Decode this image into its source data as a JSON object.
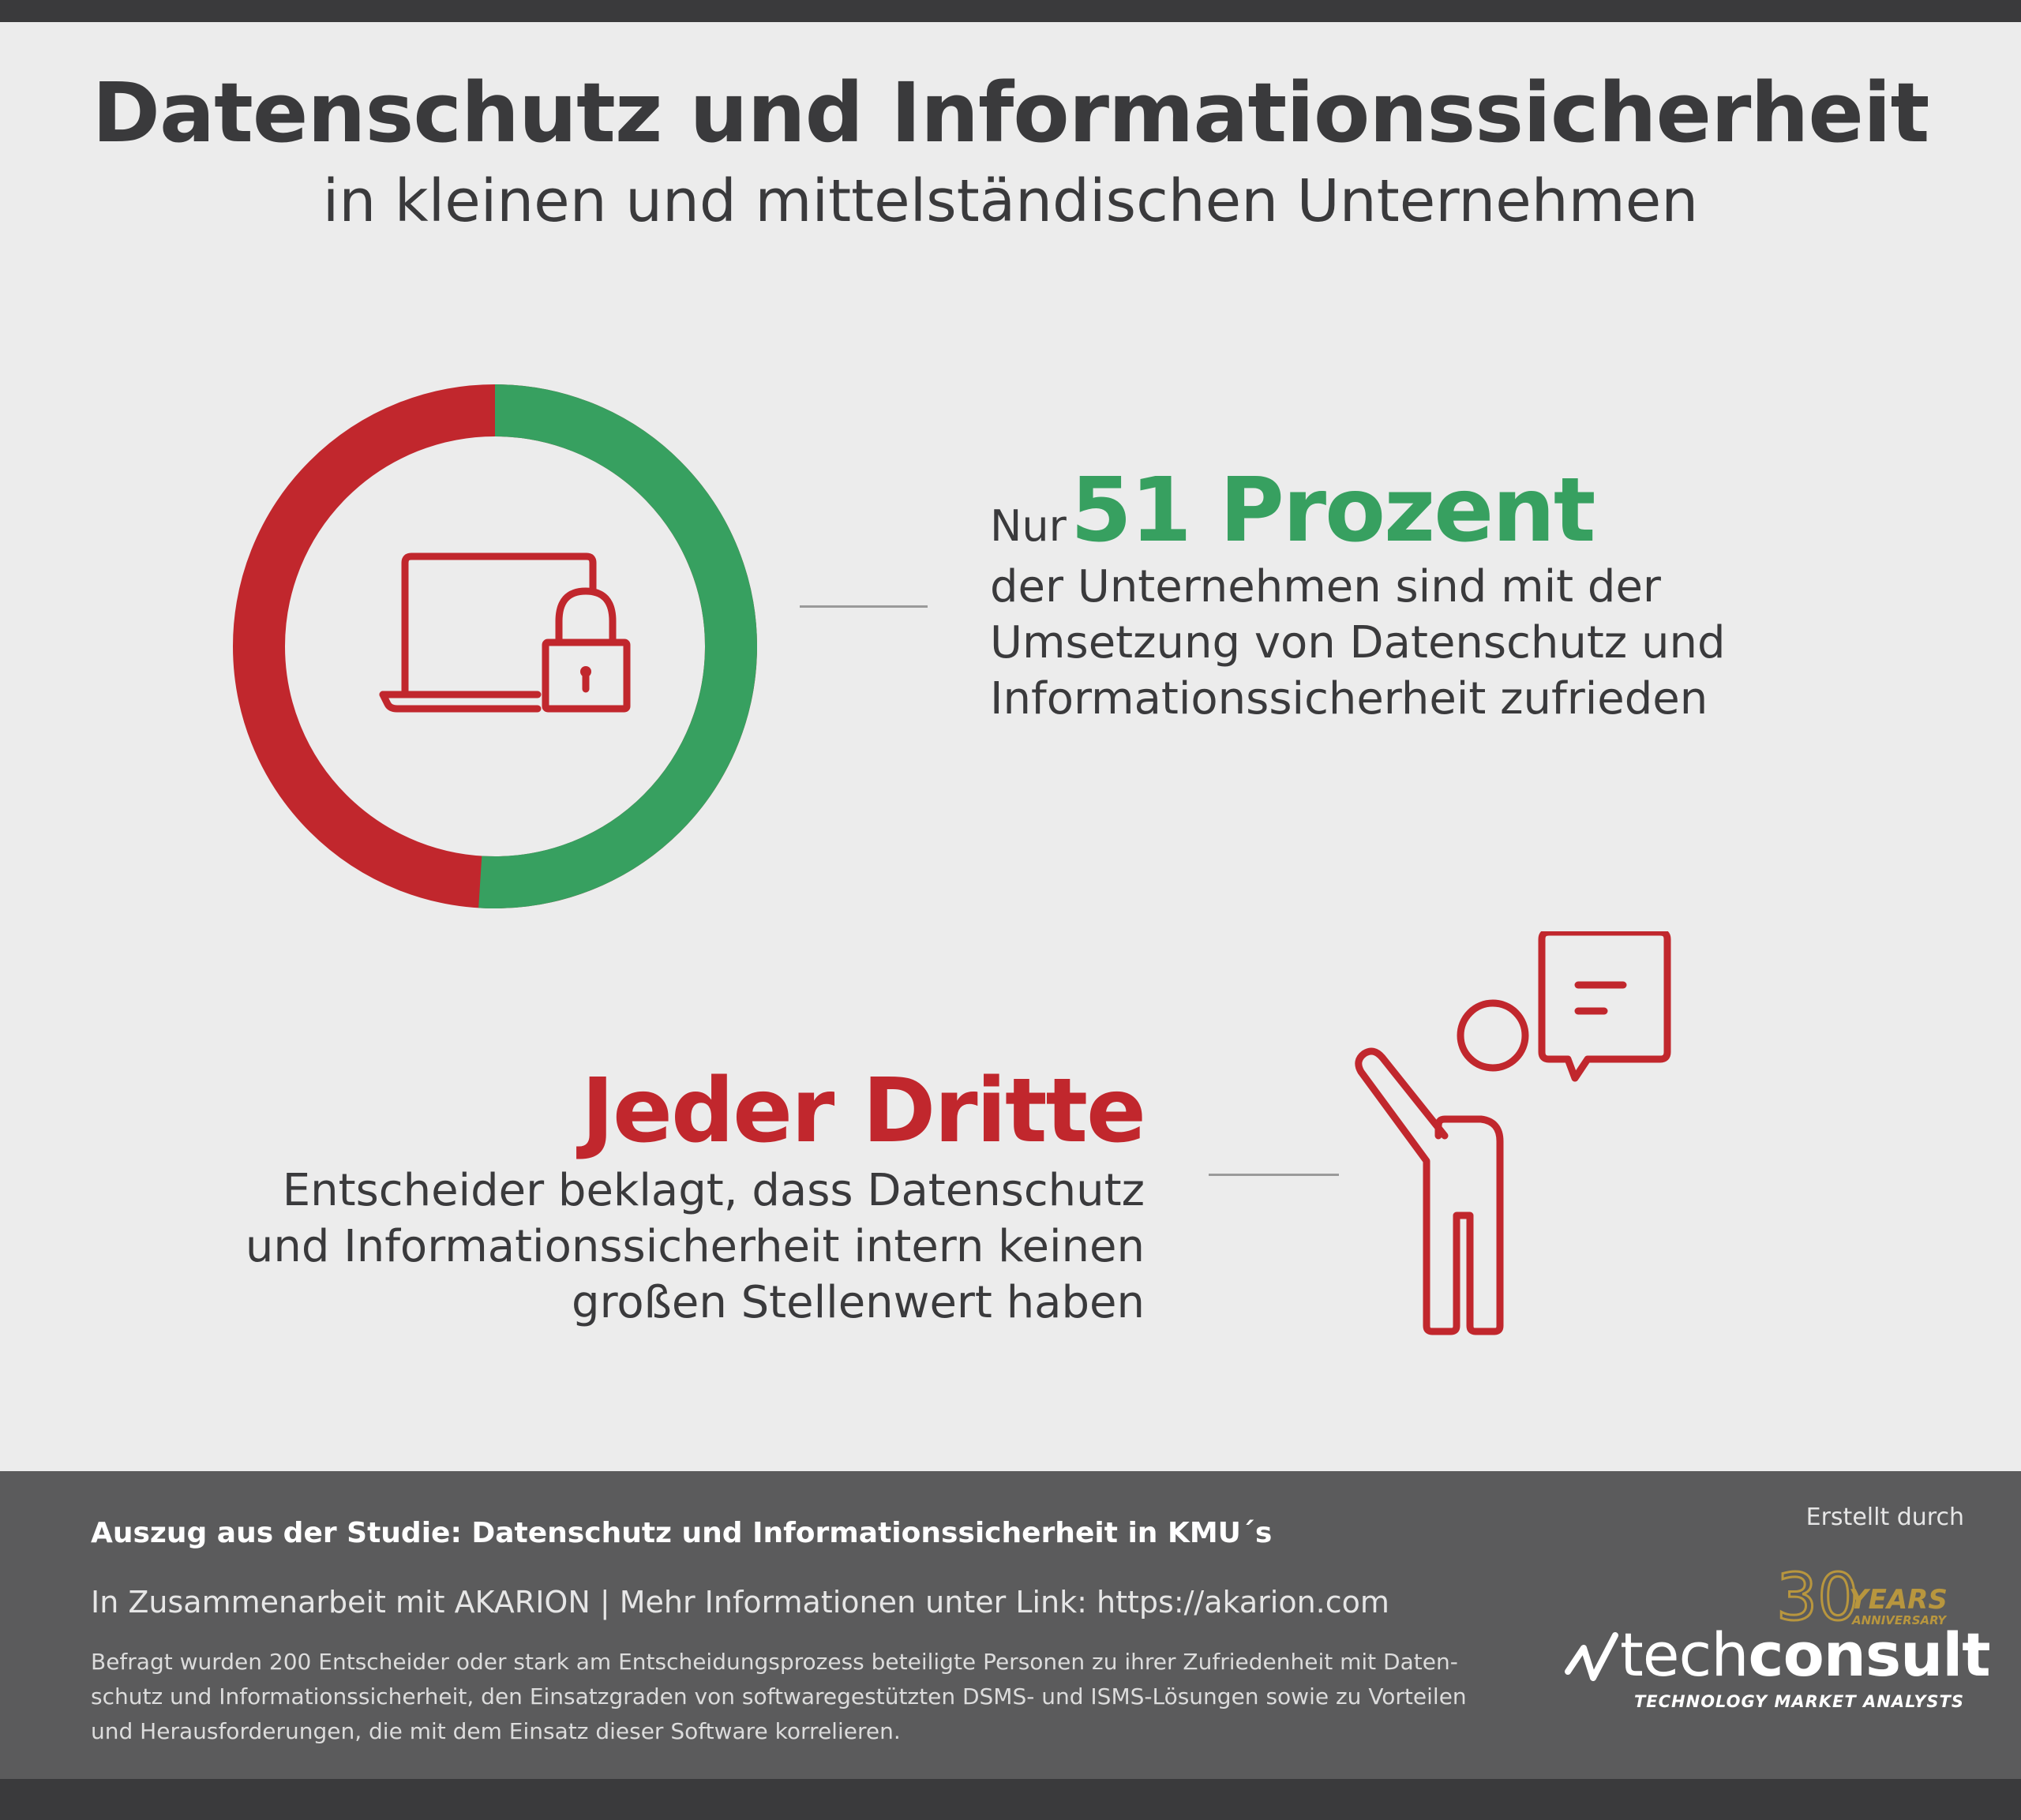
{
  "header": {
    "title": "Datenschutz und Informationssicherheit",
    "subtitle": "in kleinen und mittelständischen Unternehmen"
  },
  "stat_satisfied": {
    "lead": "Nur",
    "highlight": "51 Prozent",
    "percent": 51,
    "description_lines": [
      "der Unternehmen sind mit der",
      "Umsetzung von Datenschutz und",
      "Informationssicherheit zufrieden"
    ],
    "icon": "laptop-lock-icon"
  },
  "stat_third": {
    "highlight": "Jeder Dritte",
    "description_lines": [
      "Entscheider beklagt, dass Datenschutz",
      "und Informationssicherheit intern keinen",
      "großen Stellenwert haben"
    ],
    "icon": "person-speech-bubble-icon"
  },
  "footer": {
    "study_title": "Auszug aus der Studie: Datenschutz und Informationssicherheit in KMU´s",
    "partner_line": "In Zusammenarbeit mit AKARION | Mehr Informationen unter  Link: https://akarion.com",
    "note_lines": [
      "Befragt wurden 200 Entscheider oder stark am Entscheidungsprozess beteiligte Personen zu ihrer Zufriedenheit mit Daten-",
      "schutz und Informationssicherheit, den Einsatzgraden von softwaregestützten DSMS- und ISMS-Lösungen sowie zu Vorteilen",
      "und Herausforderungen, die mit dem Einsatz dieser Software korrelieren."
    ],
    "created_by": "Erstellt durch",
    "logo": {
      "anniversary_number": "30",
      "anniversary_word": "YEARS",
      "anniversary_sub": "ANNIVERSARY",
      "brand_light": "tech",
      "brand_bold": "consult",
      "tagline": "TECHNOLOGY MARKET ANALYSTS"
    }
  },
  "colors": {
    "green": "#37a060",
    "red": "#c1272d",
    "dark": "#3a3a3c",
    "background": "#ececec",
    "footer": "#5b5b5c",
    "gold": "#b8963e"
  }
}
